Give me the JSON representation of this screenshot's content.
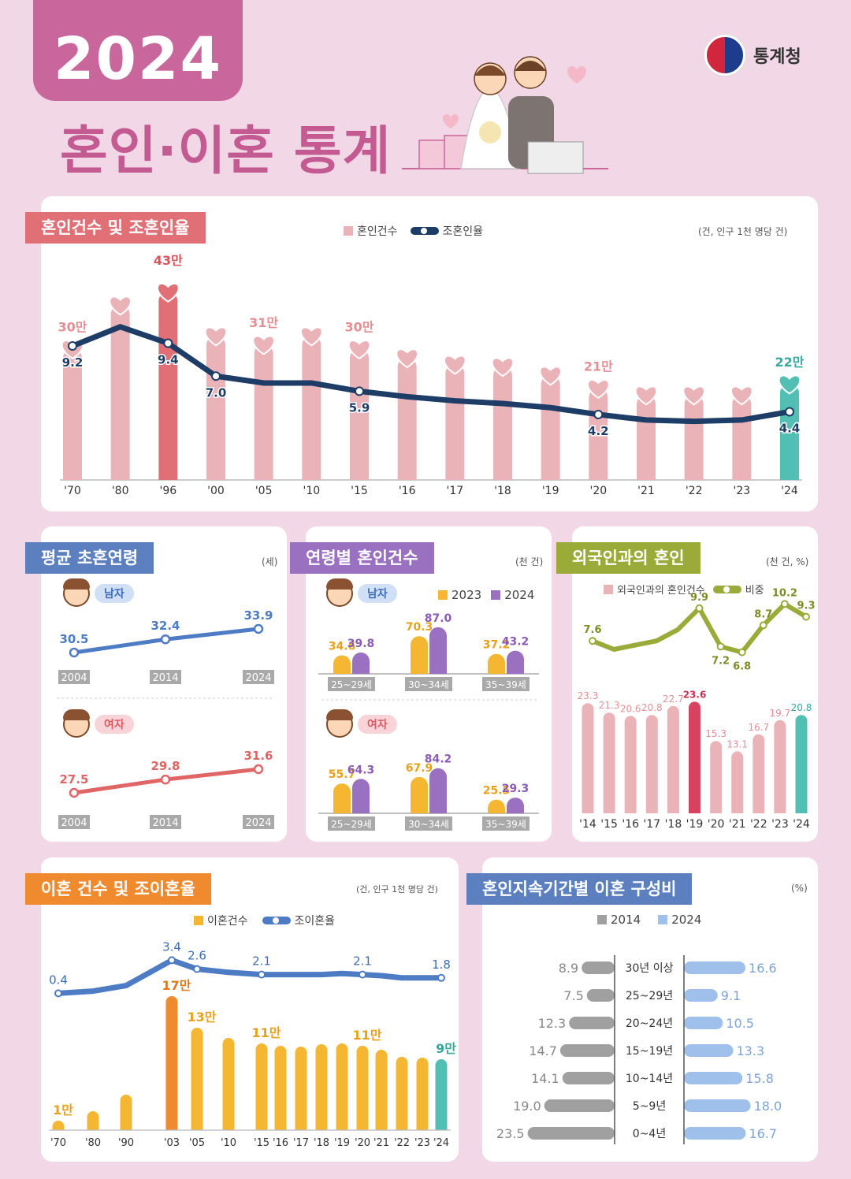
{
  "header": {
    "year": "2024",
    "title": "혼인·이혼 통계",
    "agency": "통계청"
  },
  "colors": {
    "pink_bar": "#eab3b8",
    "highlight_red": "#e07076",
    "teal": "#52bfb4",
    "navy": "#1e3d66",
    "blue_line": "#4d7bc4",
    "red_line": "#e06565",
    "yellow": "#f5b731",
    "orange": "#f08a2e",
    "purple": "#9a70c0",
    "olive": "#9aab3a",
    "gray": "#a0a0a0",
    "light_blue": "#9ec0ea",
    "crimson": "#d6425f"
  },
  "marriage": {
    "tag": "혼인건수 및 조혼인율",
    "legend_count": "혼인건수",
    "legend_rate": "조혼인율",
    "unit": "(건, 인구 1천 명당 건)"
  },
  "age": {
    "tag": "평균 초혼연령",
    "unit": "(세)",
    "male": "남자",
    "female": "여자"
  },
  "agegroup": {
    "tag": "연령별 혼인건수",
    "unit": "(천 건)",
    "legend_2023": "2023",
    "legend_2024": "2024",
    "male": "남자",
    "female": "여자"
  },
  "foreign": {
    "tag": "외국인과의 혼인",
    "unit": "(천 건, %)",
    "legend_count": "외국인과의 혼인건수",
    "legend_share": "비중"
  },
  "divorce": {
    "tag": "이혼 건수 및 조이혼율",
    "unit": "(건, 인구 1천 명당 건)",
    "legend_count": "이혼건수",
    "legend_rate": "조이혼율"
  },
  "duration": {
    "tag": "혼인지속기간별 이혼 구성비",
    "unit": "(%)",
    "legend_2014": "2014",
    "legend_2024": "2024"
  },
  "chart_data": [
    {
      "id": "marriage",
      "type": "bar",
      "title": "혼인건수 및 조혼인율",
      "categories": [
        "'70",
        "'80",
        "'96",
        "'00",
        "'05",
        "'10",
        "'15",
        "'16",
        "'17",
        "'18",
        "'19",
        "'20",
        "'21",
        "'22",
        "'23",
        "'24"
      ],
      "series": [
        {
          "name": "혼인건수",
          "values": [
            30,
            40,
            43,
            33,
            31,
            33,
            30,
            28,
            26.5,
            26,
            24,
            21,
            19.5,
            19.5,
            19.5,
            22
          ],
          "labels": [
            "30만",
            "",
            "43만",
            "",
            "31만",
            "",
            "30만",
            "",
            "",
            "",
            "",
            "21만",
            "",
            "",
            "",
            "22만"
          ],
          "unit": "만 건"
        },
        {
          "name": "조혼인율",
          "values": [
            9.2,
            10.6,
            9.4,
            7.0,
            6.5,
            6.5,
            5.9,
            5.5,
            5.2,
            5.0,
            4.7,
            4.2,
            3.8,
            3.7,
            3.8,
            4.4
          ],
          "labels": [
            "9.2",
            "",
            "9.4",
            "7.0",
            "",
            "",
            "5.9",
            "",
            "",
            "",
            "",
            "4.2",
            "",
            "",
            "",
            "4.4"
          ]
        }
      ]
    },
    {
      "id": "age_male",
      "type": "line",
      "title": "평균 초혼연령 남자",
      "x": [
        "2004",
        "2014",
        "2024"
      ],
      "series": [
        {
          "name": "남자",
          "values": [
            30.5,
            32.4,
            33.9
          ]
        }
      ]
    },
    {
      "id": "age_female",
      "type": "line",
      "title": "평균 초혼연령 여자",
      "x": [
        "2004",
        "2014",
        "2024"
      ],
      "series": [
        {
          "name": "여자",
          "values": [
            27.5,
            29.8,
            31.6
          ]
        }
      ]
    },
    {
      "id": "agegroup_male",
      "type": "bar",
      "categories": [
        "25~29세",
        "30~34세",
        "35~39세"
      ],
      "series": [
        {
          "name": "2023",
          "values": [
            34.6,
            70.3,
            37.2
          ]
        },
        {
          "name": "2024",
          "values": [
            39.8,
            87.0,
            43.2
          ]
        }
      ]
    },
    {
      "id": "agegroup_female",
      "type": "bar",
      "categories": [
        "25~29세",
        "30~34세",
        "35~39세"
      ],
      "series": [
        {
          "name": "2023",
          "values": [
            55.7,
            67.9,
            25.5
          ]
        },
        {
          "name": "2024",
          "values": [
            64.3,
            84.2,
            29.3
          ]
        }
      ]
    },
    {
      "id": "foreign",
      "type": "bar",
      "categories": [
        "'14",
        "'15",
        "'16",
        "'17",
        "'18",
        "'19",
        "'20",
        "'21",
        "'22",
        "'23",
        "'24"
      ],
      "series": [
        {
          "name": "외국인과의 혼인건수",
          "values": [
            23.3,
            21.3,
            20.6,
            20.8,
            22.7,
            23.6,
            15.3,
            13.1,
            16.7,
            19.7,
            20.8
          ]
        },
        {
          "name": "비중",
          "values": [
            7.6,
            7.0,
            7.3,
            7.6,
            8.4,
            9.9,
            7.2,
            6.8,
            8.7,
            10.2,
            9.3
          ],
          "labels": [
            "7.6",
            "",
            "",
            "",
            "",
            "9.9",
            "7.2",
            "6.8",
            "8.7",
            "10.2",
            "9.3"
          ]
        }
      ]
    },
    {
      "id": "divorce",
      "type": "bar",
      "title": "이혼 건수 및 조이혼율",
      "categories": [
        "'70",
        "'80",
        "'90",
        "'03",
        "'05",
        "'10",
        "'15",
        "'16",
        "'17",
        "'18",
        "'19",
        "'20",
        "'21",
        "'22",
        "'23",
        "'24"
      ],
      "series": [
        {
          "name": "이혼건수",
          "values": [
            1.2,
            2.4,
            4.5,
            17,
            13,
            11.7,
            11,
            10.7,
            10.6,
            10.9,
            11,
            10.7,
            10.2,
            9.3,
            9.2,
            9
          ],
          "labels": [
            "1만",
            "",
            "",
            "17만",
            "13만",
            "",
            "11만",
            "",
            "",
            "",
            "",
            "11만",
            "",
            "",
            "",
            "9만"
          ],
          "unit": "만 건"
        },
        {
          "name": "조이혼율",
          "values": [
            0.4,
            0.6,
            1.1,
            3.4,
            2.6,
            2.3,
            2.1,
            2.1,
            2.1,
            2.1,
            2.2,
            2.1,
            2.0,
            1.8,
            1.8,
            1.8
          ],
          "labels": [
            "0.4",
            "",
            "",
            "3.4",
            "2.6",
            "",
            "2.1",
            "",
            "",
            "",
            "",
            "2.1",
            "",
            "",
            "",
            "1.8"
          ]
        }
      ]
    },
    {
      "id": "duration",
      "type": "bar",
      "title": "혼인지속기간별 이혼 구성비",
      "categories": [
        "30년 이상",
        "25~29년",
        "20~24년",
        "15~19년",
        "10~14년",
        "5~9년",
        "0~4년"
      ],
      "series": [
        {
          "name": "2014",
          "values": [
            8.9,
            7.5,
            12.3,
            14.7,
            14.1,
            19.0,
            23.5
          ]
        },
        {
          "name": "2024",
          "values": [
            16.6,
            9.1,
            10.5,
            13.3,
            15.8,
            18.0,
            16.7
          ]
        }
      ]
    }
  ]
}
